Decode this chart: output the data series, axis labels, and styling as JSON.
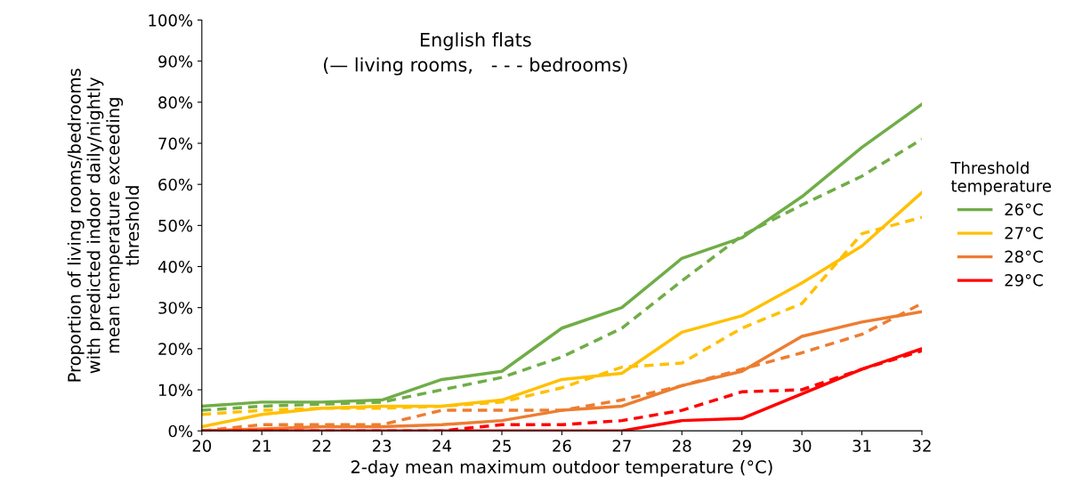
{
  "chart_data": {
    "type": "line",
    "title": "English flats\n(— living rooms,   - - - bedrooms)",
    "xlabel": "2-day mean maximum outdoor temperature (°C)",
    "ylabel": "Proportion of living rooms/bedrooms\nwith predicted indoor daily/nightly\nmean temperature exceeding\nthreshold",
    "legend_title": "Threshold\ntemperature",
    "legend": "right",
    "grid": false,
    "marker": "none",
    "x": [
      20,
      21,
      22,
      23,
      24,
      25,
      26,
      27,
      28,
      29,
      30,
      31,
      32
    ],
    "xlim": [
      20,
      32
    ],
    "xticks": [
      20,
      21,
      22,
      23,
      24,
      25,
      26,
      27,
      28,
      29,
      30,
      31,
      32
    ],
    "ylim": [
      0,
      100
    ],
    "yticks": [
      {
        "value": 0,
        "label": "0%"
      },
      {
        "value": 10,
        "label": "10%"
      },
      {
        "value": 20,
        "label": "20%"
      },
      {
        "value": 30,
        "label": "30%"
      },
      {
        "value": 40,
        "label": "40%"
      },
      {
        "value": 50,
        "label": "50%"
      },
      {
        "value": 60,
        "label": "60%"
      },
      {
        "value": 70,
        "label": "70%"
      },
      {
        "value": 80,
        "label": "80%"
      },
      {
        "value": 90,
        "label": "90%"
      },
      {
        "value": 100,
        "label": "100%"
      }
    ],
    "series": [
      {
        "name": "26°C",
        "color": "#70ad47",
        "line_style": "solid",
        "values": [
          6,
          7,
          7,
          7.5,
          12.5,
          14.5,
          25,
          30,
          42,
          47,
          57,
          69,
          79.5
        ]
      },
      {
        "name": "27°C",
        "color": "#ffc000",
        "line_style": "solid",
        "values": [
          1,
          4,
          5.5,
          6,
          6,
          7.5,
          12.5,
          14,
          24,
          28,
          36,
          45,
          58
        ]
      },
      {
        "name": "28°C",
        "color": "#ed7d31",
        "line_style": "solid",
        "values": [
          0,
          0.5,
          1,
          1,
          1.5,
          2.5,
          5,
          6,
          11,
          14.5,
          23,
          26.5,
          29
        ]
      },
      {
        "name": "29°C",
        "color": "#ff0000",
        "line_style": "solid",
        "values": [
          0,
          0,
          0,
          0,
          0,
          0,
          0,
          0,
          2.5,
          3,
          9,
          15,
          20
        ]
      },
      {
        "color": "#70ad47",
        "line_style": "dashed",
        "values": [
          5,
          6,
          6.5,
          7,
          10,
          13,
          18,
          25,
          36.5,
          47.5,
          55,
          62,
          71
        ]
      },
      {
        "color": "#ffc000",
        "line_style": "dashed",
        "values": [
          4,
          5,
          5.5,
          5.5,
          6,
          7,
          10.5,
          15.5,
          16.5,
          25,
          31,
          48,
          52
        ]
      },
      {
        "color": "#ed7d31",
        "line_style": "dashed",
        "values": [
          0,
          1.5,
          1.5,
          1.5,
          5,
          5,
          5,
          7.5,
          11,
          15,
          19,
          23.5,
          31
        ]
      },
      {
        "color": "#ff0000",
        "line_style": "dashed",
        "values": [
          0,
          0,
          0,
          0,
          0,
          1.5,
          1.5,
          2.5,
          5,
          9.5,
          10,
          15,
          19.5
        ]
      }
    ]
  }
}
